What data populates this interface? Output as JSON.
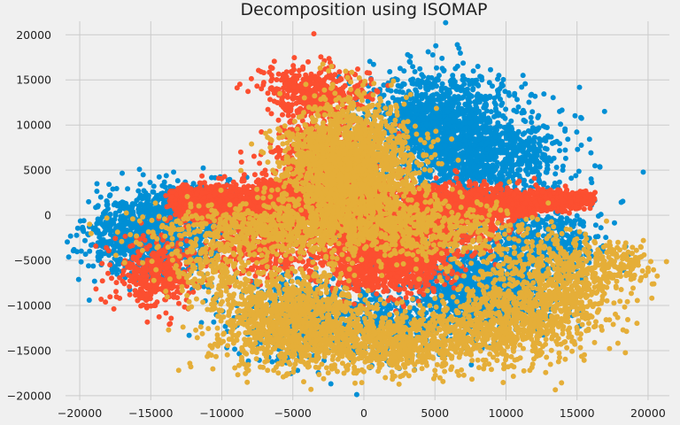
{
  "chart_data": {
    "type": "scatter",
    "title": "Decomposition using ISOMAP",
    "xlabel": "",
    "ylabel": "",
    "xlim": [
      -21000,
      21500
    ],
    "ylim": [
      -20500,
      21500
    ],
    "xticks": [
      -20000,
      -15000,
      -10000,
      -5000,
      0,
      5000,
      10000,
      15000,
      20000
    ],
    "yticks": [
      -20000,
      -15000,
      -10000,
      -5000,
      0,
      5000,
      10000,
      15000,
      20000
    ],
    "xtick_labels": [
      "−20000",
      "−15000",
      "−10000",
      "−5000",
      "0",
      "5000",
      "10000",
      "15000",
      "20000"
    ],
    "ytick_labels": [
      "−20000",
      "−15000",
      "−10000",
      "−5000",
      "0",
      "5000",
      "10000",
      "15000",
      "20000"
    ],
    "grid": true,
    "background": "#f0f0f0",
    "series": [
      {
        "color": "#008fd5",
        "point_count": 6000,
        "regions": [
          {
            "type": "gauss",
            "cx": -15000,
            "cy": -2500,
            "sx": 2200,
            "sy": 2300,
            "w": 0.16
          },
          {
            "type": "gauss",
            "cx": -12000,
            "cy": 1000,
            "sx": 2500,
            "sy": 1500,
            "w": 0.07
          },
          {
            "type": "gauss",
            "cx": 5000,
            "cy": 10000,
            "sx": 2500,
            "sy": 3000,
            "w": 0.22
          },
          {
            "type": "gauss",
            "cx": 9000,
            "cy": 6500,
            "sx": 2700,
            "sy": 2700,
            "w": 0.13
          },
          {
            "type": "gauss",
            "cx": 8500,
            "cy": -8000,
            "sx": 2400,
            "sy": 2400,
            "w": 0.19
          },
          {
            "type": "gauss",
            "cx": 12500,
            "cy": -3500,
            "sx": 2000,
            "sy": 2200,
            "w": 0.08
          },
          {
            "type": "gauss",
            "cx": -4000,
            "cy": -11000,
            "sx": 2500,
            "sy": 2400,
            "w": 0.1
          },
          {
            "type": "gauss",
            "cx": 2000,
            "cy": -12000,
            "sx": 2500,
            "sy": 2000,
            "w": 0.05
          }
        ]
      },
      {
        "color": "#fc4f30",
        "point_count": 7500,
        "regions": [
          {
            "type": "wedge",
            "x0": -13500,
            "x1": 0,
            "yc0": 1500,
            "yc1": 500,
            "h0": 1700,
            "h1": 4500,
            "w": 0.28
          },
          {
            "type": "wedge",
            "x0": 0,
            "x1": 16000,
            "yc0": 300,
            "yc1": 1800,
            "h0": 3800,
            "h1": 800,
            "w": 0.28
          },
          {
            "type": "gauss",
            "cx": -3000,
            "cy": 6000,
            "sx": 1800,
            "sy": 3500,
            "w": 0.09
          },
          {
            "type": "gauss",
            "cx": -3500,
            "cy": 14000,
            "sx": 1800,
            "sy": 1300,
            "w": 0.05
          },
          {
            "type": "gauss",
            "cx": -14500,
            "cy": -6500,
            "sx": 1500,
            "sy": 2000,
            "w": 0.05
          },
          {
            "type": "gauss",
            "cx": 1500,
            "cy": -4500,
            "sx": 2500,
            "sy": 2000,
            "w": 0.17
          },
          {
            "type": "gauss",
            "cx": -7000,
            "cy": -3500,
            "sx": 1800,
            "sy": 1800,
            "w": 0.05
          },
          {
            "type": "gauss",
            "cx": 6500,
            "cy": -1500,
            "sx": 2000,
            "sy": 1500,
            "w": 0.03
          }
        ]
      },
      {
        "color": "#e5ae38",
        "point_count": 6500,
        "regions": [
          {
            "type": "gauss",
            "cx": -1000,
            "cy": 5500,
            "sx": 2300,
            "sy": 3500,
            "w": 0.3
          },
          {
            "type": "gauss",
            "cx": -5500,
            "cy": -11000,
            "sx": 2700,
            "sy": 2700,
            "w": 0.15
          },
          {
            "type": "gauss",
            "cx": 1500,
            "cy": -14000,
            "sx": 4500,
            "sy": 1800,
            "w": 0.15
          },
          {
            "type": "gauss",
            "cx": 11000,
            "cy": -11000,
            "sx": 3000,
            "sy": 2500,
            "w": 0.12
          },
          {
            "type": "gauss",
            "cx": 14000,
            "cy": -6500,
            "sx": 2200,
            "sy": 2500,
            "w": 0.06
          },
          {
            "type": "gauss",
            "cx": -6500,
            "cy": -1500,
            "sx": 4500,
            "sy": 1500,
            "w": 0.1
          },
          {
            "type": "gauss",
            "cx": 4000,
            "cy": -1500,
            "sx": 3500,
            "sy": 1800,
            "w": 0.08
          },
          {
            "type": "gauss",
            "cx": 18000,
            "cy": -5500,
            "sx": 1200,
            "sy": 1200,
            "w": 0.02
          },
          {
            "type": "gauss",
            "cx": -11000,
            "cy": -6000,
            "sx": 1500,
            "sy": 1500,
            "w": 0.02
          }
        ]
      }
    ]
  }
}
